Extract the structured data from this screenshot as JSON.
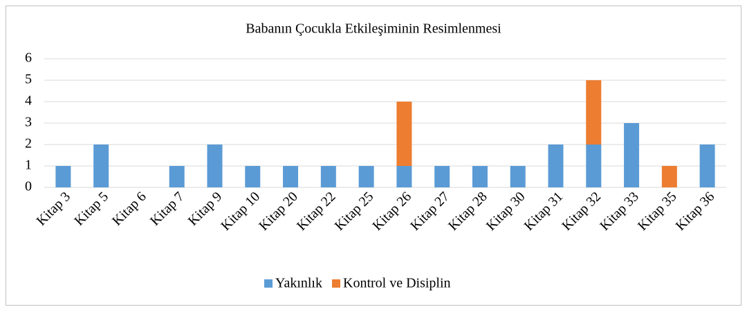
{
  "chart_data": {
    "type": "stacked_bar",
    "title": "Babanın Çocukla Etkileşiminin Resimlenmesi",
    "categories": [
      "Kitap 3",
      "Kitap 5",
      "Kitap 6",
      "Kitap 7",
      "Kitap 9",
      "Kitap 10",
      "Kitap 20",
      "Kitap 22",
      "Kitap 25",
      "Kitap 26",
      "Kitap 27",
      "Kitap 28",
      "Kitap 30",
      "Kitap 31",
      "Kitap 32",
      "Kitap 33",
      "Kitap 35",
      "Kitap 36"
    ],
    "series": [
      {
        "name": "Yakınlık",
        "color": "#5b9bd5",
        "values": [
          1,
          2,
          0,
          1,
          2,
          1,
          1,
          1,
          1,
          1,
          1,
          1,
          1,
          2,
          2,
          3,
          0,
          2
        ]
      },
      {
        "name": "Kontrol ve Disiplin",
        "color": "#ed7d31",
        "values": [
          0,
          0,
          0,
          0,
          0,
          0,
          0,
          0,
          0,
          3,
          0,
          0,
          0,
          0,
          3,
          0,
          1,
          0
        ]
      }
    ],
    "ylim": [
      0,
      6
    ],
    "yticks": [
      0,
      1,
      2,
      3,
      4,
      5,
      6
    ],
    "grid": true,
    "legend": "bottom"
  }
}
